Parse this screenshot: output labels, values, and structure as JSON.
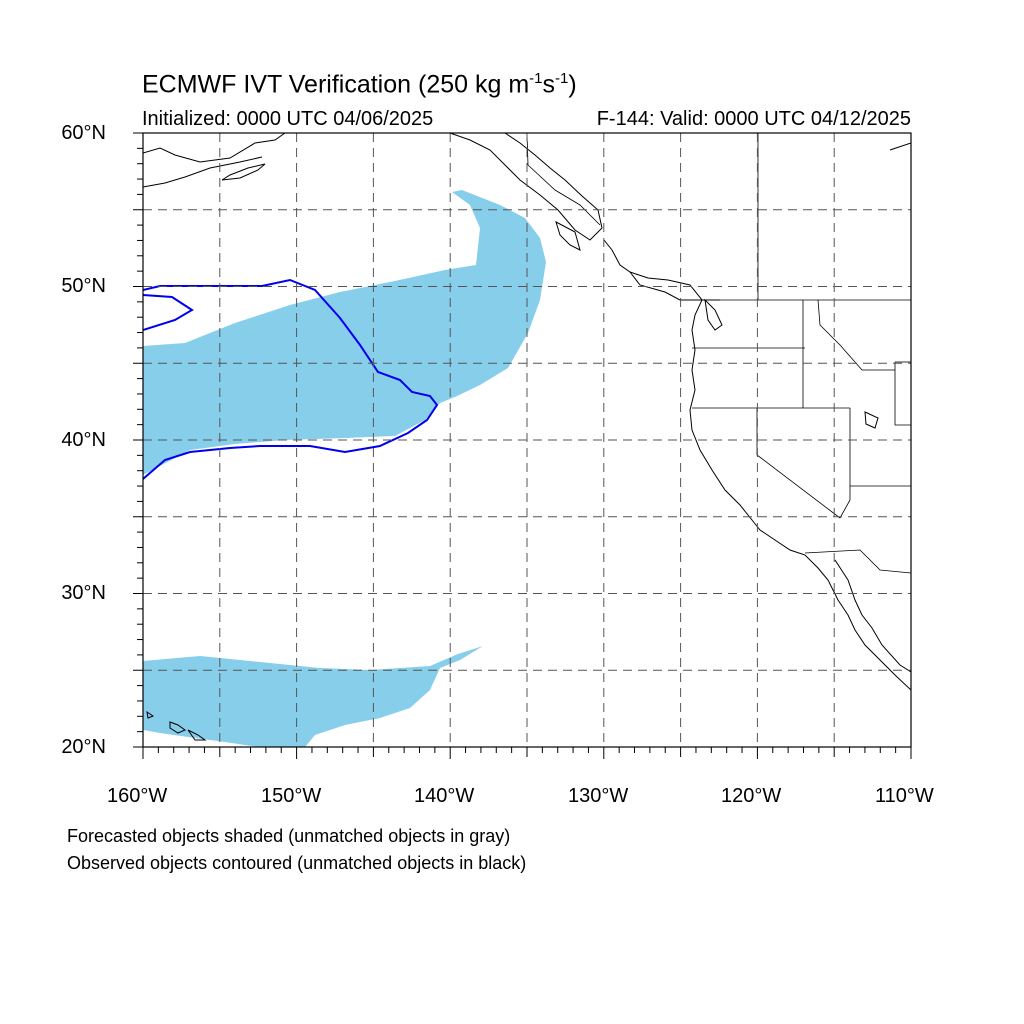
{
  "title": {
    "main": "ECMWF IVT Verification (250 kg m",
    "sup1": "-1",
    "mid": "s",
    "sup2": "-1",
    "end": ")"
  },
  "initialized": "Initialized: 0000 UTC 04/06/2025",
  "valid": "F-144: Valid: 0000 UTC 04/12/2025",
  "map": {
    "lon_range": [
      -160,
      -110
    ],
    "lat_range": [
      20,
      60
    ],
    "lat_labels": [
      "60°N",
      "50°N",
      "40°N",
      "30°N",
      "20°N"
    ],
    "lon_labels": [
      "160°W",
      "150°W",
      "140°W",
      "130°W",
      "120°W",
      "110°W"
    ],
    "colors": {
      "forecast_matched": "#87ceeb",
      "observed_matched": "#0000ee",
      "coast": "#000000",
      "grid": "#555555"
    }
  },
  "notes": [
    "Forecasted objects shaded (unmatched objects in gray)",
    "Observed objects contoured (unmatched objects in black)"
  ]
}
